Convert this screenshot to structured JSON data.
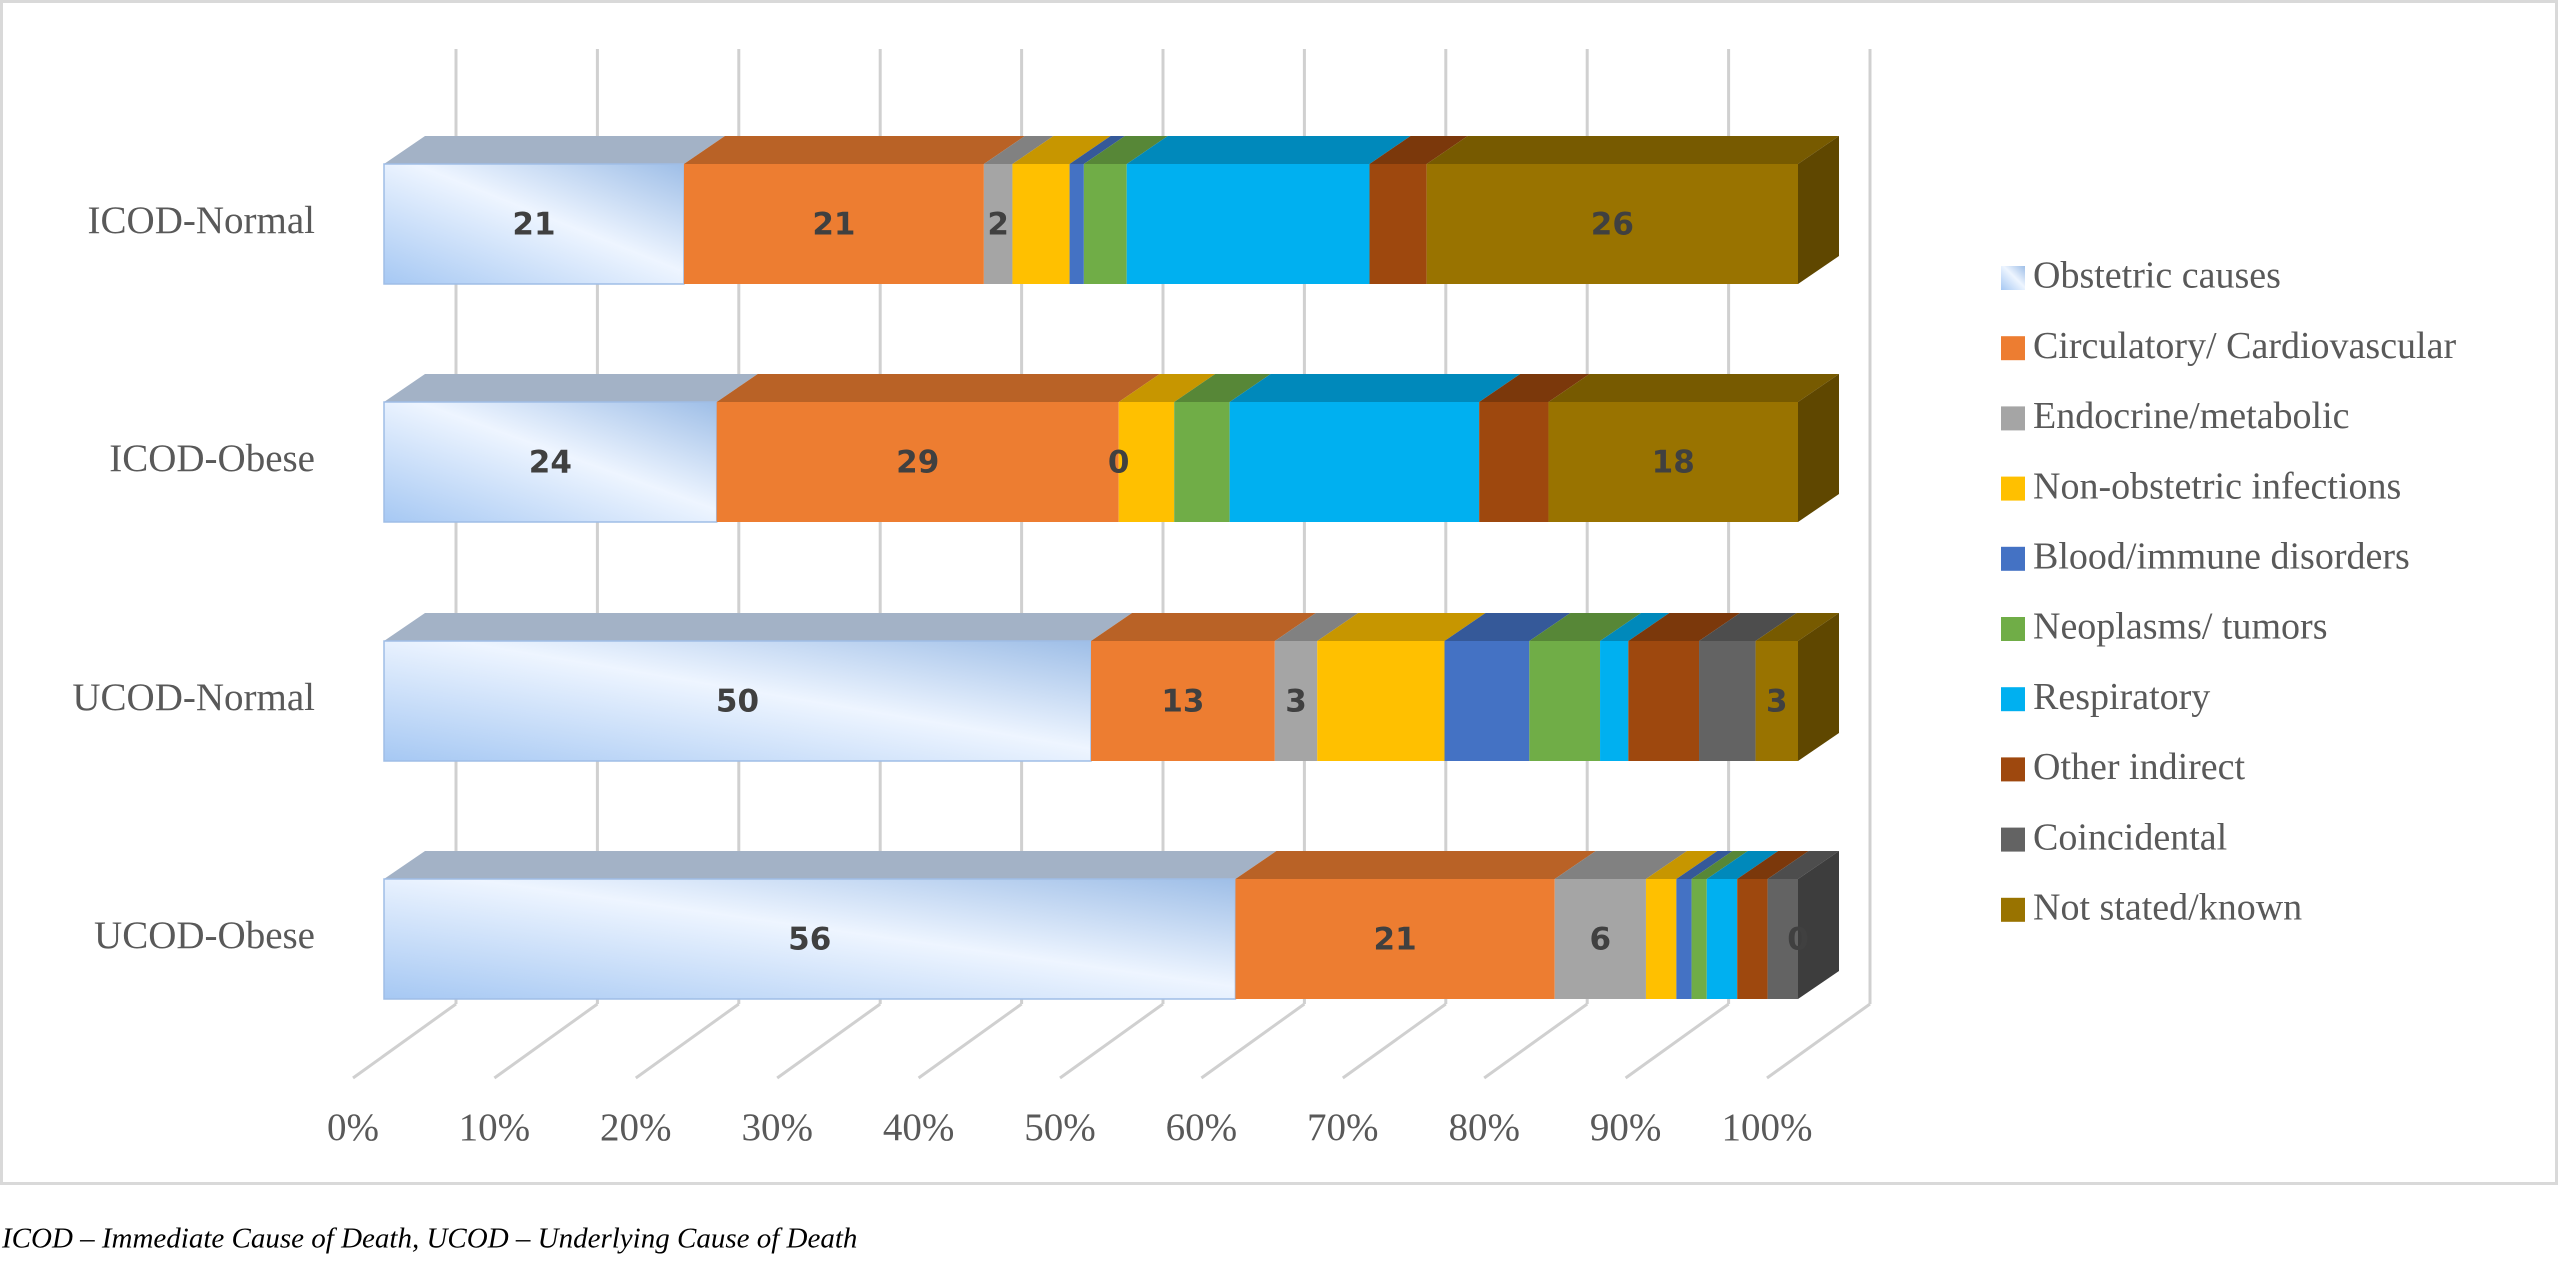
{
  "chart_data": {
    "type": "bar",
    "orientation": "horizontal",
    "stacking": "percent",
    "three_d": true,
    "categories": [
      "ICOD-Normal",
      "ICOD-Obese",
      "UCOD-Normal",
      "UCOD-Obese"
    ],
    "series": [
      {
        "name": "Obstetric causes",
        "color": "#a6c8f3",
        "gradient": true,
        "values": [
          21,
          24,
          50,
          56
        ],
        "value_labels": [
          "21",
          "24",
          "50",
          "56"
        ]
      },
      {
        "name": "Circulatory/ Cardiovascular",
        "color": "#ed7d31",
        "values": [
          21,
          29,
          13,
          21
        ],
        "value_labels": [
          "21",
          "29",
          "13",
          "21"
        ]
      },
      {
        "name": "Endocrine/metabolic",
        "color": "#a5a5a5",
        "values": [
          2,
          0,
          3,
          6
        ],
        "value_labels": [
          "2",
          "0",
          "3",
          "6"
        ]
      },
      {
        "name": "Non-obstetric infections",
        "color": "#ffc000",
        "values": [
          4,
          4,
          9,
          2
        ],
        "value_labels": [
          null,
          null,
          null,
          null
        ]
      },
      {
        "name": "Blood/immune disorders",
        "color": "#4472c4",
        "values": [
          1,
          0,
          6,
          1
        ],
        "value_labels": [
          null,
          null,
          null,
          null
        ]
      },
      {
        "name": "Neoplasms/ tumors",
        "color": "#70ad47",
        "values": [
          3,
          4,
          5,
          1
        ],
        "value_labels": [
          null,
          null,
          null,
          null
        ]
      },
      {
        "name": "Respiratory",
        "color": "#00b0f0",
        "values": [
          17,
          18,
          2,
          2
        ],
        "value_labels": [
          null,
          null,
          null,
          null
        ]
      },
      {
        "name": "Other indirect",
        "color": "#9e480e",
        "values": [
          4,
          5,
          5,
          2
        ],
        "value_labels": [
          null,
          null,
          null,
          null
        ]
      },
      {
        "name": "Coincidental",
        "color": "#636363",
        "values": [
          0,
          0,
          4,
          2
        ],
        "value_labels": [
          null,
          null,
          null,
          null
        ]
      },
      {
        "name": "Not stated/known",
        "color": "#997300",
        "values": [
          26,
          18,
          3,
          0
        ],
        "value_labels": [
          "26",
          "18",
          "3",
          "0"
        ]
      }
    ],
    "xlim": [
      0,
      100
    ],
    "xticks": [
      {
        "value": 0,
        "label": "0%"
      },
      {
        "value": 10,
        "label": "10%"
      },
      {
        "value": 20,
        "label": "20%"
      },
      {
        "value": 30,
        "label": "30%"
      },
      {
        "value": 40,
        "label": "40%"
      },
      {
        "value": 50,
        "label": "50%"
      },
      {
        "value": 60,
        "label": "60%"
      },
      {
        "value": 70,
        "label": "70%"
      },
      {
        "value": 80,
        "label": "80%"
      },
      {
        "value": 90,
        "label": "90%"
      },
      {
        "value": 100,
        "label": "100%"
      }
    ],
    "grid": true,
    "legend": "right",
    "footnote": "ICOD – Immediate Cause of Death, UCOD – Underlying Cause of Death"
  }
}
